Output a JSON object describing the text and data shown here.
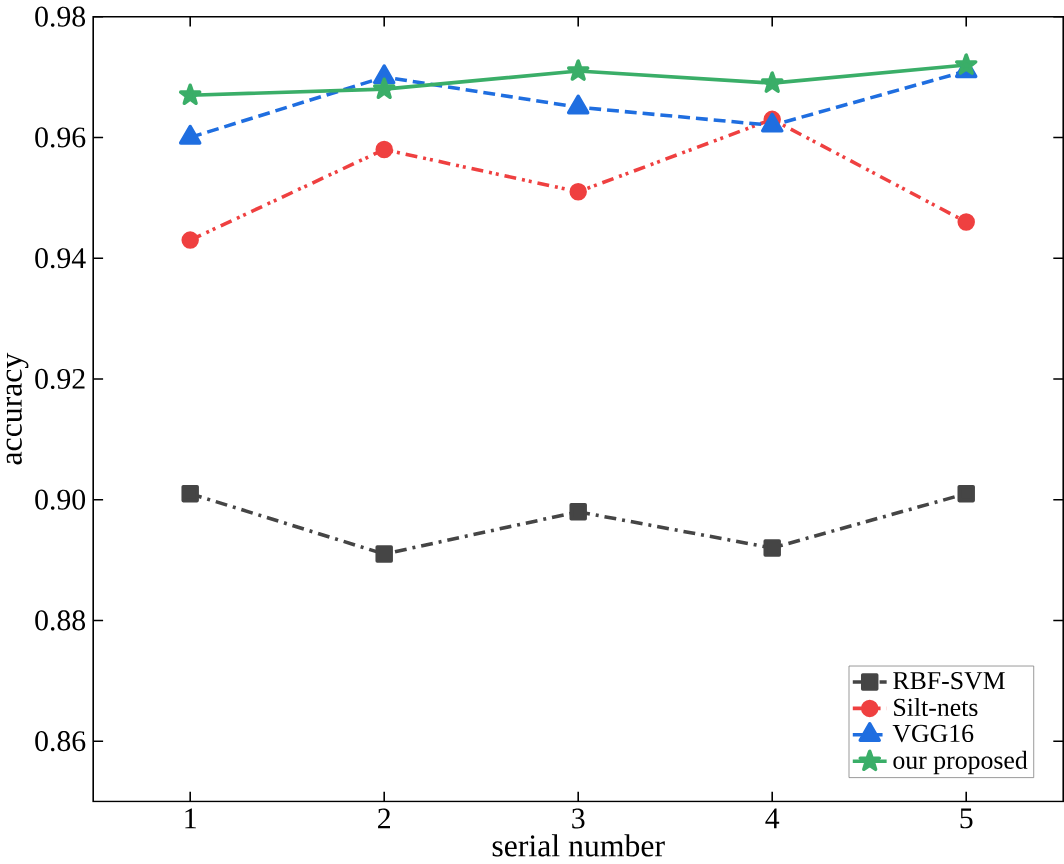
{
  "chart_data": {
    "type": "line",
    "xlabel": "serial number",
    "ylabel": "accuracy",
    "x": [
      1,
      2,
      3,
      4,
      5
    ],
    "series": [
      {
        "name": "RBF-SVM",
        "color": "#454545",
        "marker": "square",
        "line_style": "dashdot",
        "values": [
          0.901,
          0.891,
          0.898,
          0.892,
          0.901
        ]
      },
      {
        "name": "Silt-nets",
        "color": "#ef4040",
        "marker": "circle",
        "line_style": "dashdotdot",
        "values": [
          0.943,
          0.958,
          0.951,
          0.963,
          0.946
        ]
      },
      {
        "name": "VGG16",
        "color": "#1f6ee0",
        "marker": "triangle",
        "line_style": "dashed",
        "values": [
          0.96,
          0.97,
          0.965,
          0.962,
          0.971
        ]
      },
      {
        "name": "our proposed",
        "color": "#3aae68",
        "marker": "star",
        "line_style": "solid",
        "values": [
          0.967,
          0.968,
          0.971,
          0.969,
          0.972
        ]
      }
    ],
    "xlim": [
      0.5,
      5.5
    ],
    "ylim": [
      0.85,
      0.98
    ],
    "xticks": [
      1,
      2,
      3,
      4,
      5
    ],
    "yticks": [
      {
        "value": 0.86,
        "label": "0.86"
      },
      {
        "value": 0.88,
        "label": "0.88"
      },
      {
        "value": 0.9,
        "label": "0.90"
      },
      {
        "value": 0.92,
        "label": "0.92"
      },
      {
        "value": 0.94,
        "label": "0.94"
      },
      {
        "value": 0.96,
        "label": "0.96"
      },
      {
        "value": 0.98,
        "label": "0.98"
      }
    ],
    "legend": "bottom right",
    "grid": false
  }
}
